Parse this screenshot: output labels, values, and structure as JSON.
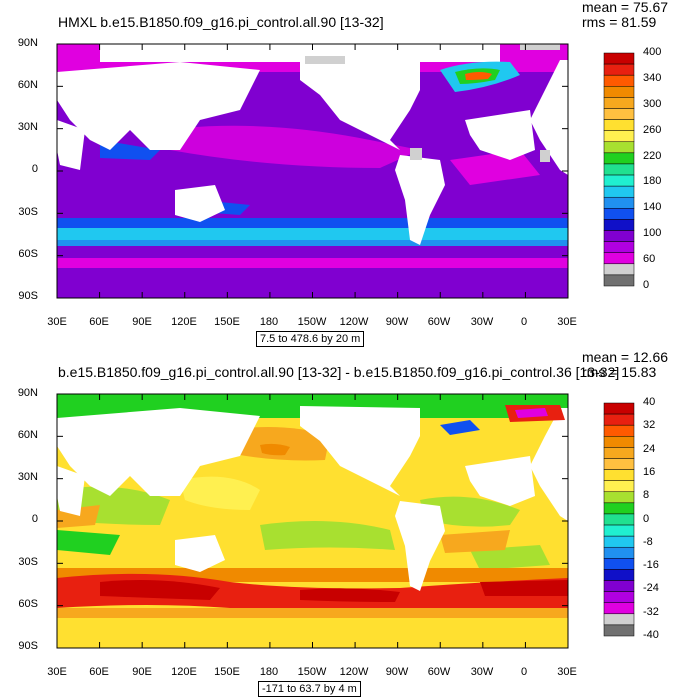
{
  "panels": [
    {
      "title": "HMXL b.e15.B1850.f09_g16.pi_control.all.90 [13-32]",
      "stats": {
        "mean": "mean = 75.67",
        "rms": "rms = 81.59"
      },
      "range": "7.5 to 478.6 by 20 m",
      "lat_labels": [
        "90N",
        "60N",
        "30N",
        "0",
        "30S",
        "60S",
        "90S"
      ],
      "lon_labels": [
        "30E",
        "60E",
        "90E",
        "120E",
        "150E",
        "180",
        "150W",
        "120W",
        "90W",
        "60W",
        "30W",
        "0",
        "30E"
      ],
      "colorbar": {
        "labels": [
          "400",
          "340",
          "300",
          "260",
          "220",
          "180",
          "140",
          "100",
          "60",
          "0"
        ],
        "colors": [
          "#c80000",
          "#e82010",
          "#ff5a00",
          "#f08a00",
          "#f7a81e",
          "#ffc040",
          "#ffe030",
          "#fff050",
          "#a8e030",
          "#20d020",
          "#20e090",
          "#20f0d0",
          "#20c8f0",
          "#2090f0",
          "#1050f0",
          "#1010c8",
          "#8000d0",
          "#b000e0",
          "#e000e0",
          "#d0d0d0",
          "#707070"
        ]
      }
    },
    {
      "title": "b.e15.B1850.f09_g16.pi_control.all.90 [13-32] - b.e15.B1850.f09_g16.pi_control.36 [13-32]",
      "stats": {
        "mean": "mean = 12.66",
        "rms": "rms = 15.83"
      },
      "range": "-171 to 63.7 by 4 m",
      "lat_labels": [
        "90N",
        "60N",
        "30N",
        "0",
        "30S",
        "60S",
        "90S"
      ],
      "lon_labels": [
        "30E",
        "60E",
        "90E",
        "120E",
        "150E",
        "180",
        "150W",
        "120W",
        "90W",
        "60W",
        "30W",
        "0",
        "30E"
      ],
      "colorbar": {
        "labels": [
          "40",
          "32",
          "24",
          "16",
          "8",
          "0",
          "-8",
          "-16",
          "-24",
          "-32",
          "-40"
        ],
        "colors": [
          "#c80000",
          "#e82010",
          "#ff5a00",
          "#f08a00",
          "#f7a81e",
          "#ffc040",
          "#ffe030",
          "#fff050",
          "#a8e030",
          "#20d020",
          "#20e090",
          "#20f0d0",
          "#20c8f0",
          "#2090f0",
          "#1050f0",
          "#1010c8",
          "#8000d0",
          "#b000e0",
          "#e000e0",
          "#d0d0d0",
          "#707070"
        ]
      }
    }
  ]
}
